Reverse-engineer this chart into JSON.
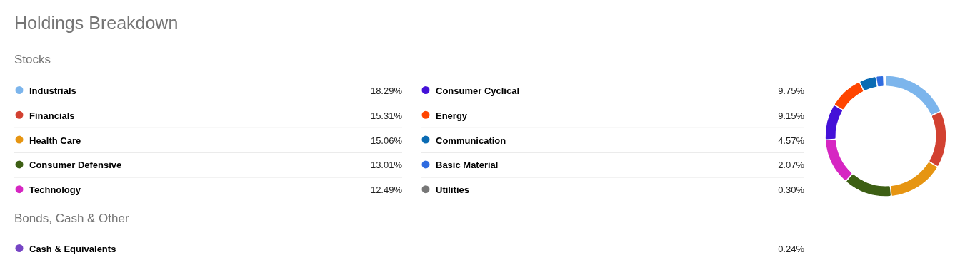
{
  "chart_data": {
    "type": "donut",
    "title": "Holdings Breakdown",
    "subtitle": "Stocks",
    "annotations": [
      "Bonds, Cash & Other"
    ],
    "categories": [
      "Industrials",
      "Financials",
      "Health Care",
      "Consumer Defensive",
      "Technology",
      "Consumer Cyclical",
      "Energy",
      "Communication",
      "Basic Material",
      "Utilities",
      "Cash & Equivalents"
    ],
    "values": [
      18.29,
      15.31,
      15.06,
      13.01,
      12.49,
      9.75,
      9.15,
      4.57,
      2.07,
      0.3,
      0.24
    ],
    "value_labels": [
      "18.29%",
      "15.31%",
      "15.06%",
      "13.01%",
      "12.49%",
      "9.75%",
      "9.15%",
      "4.57%",
      "2.07%",
      "0.30%",
      "0.24%"
    ],
    "colors": [
      "#7cb5ec",
      "#d24131",
      "#e69512",
      "#3d5f14",
      "#d626c2",
      "#4411d8",
      "#ff4500",
      "#0a6bb3",
      "#2e6be0",
      "#777777",
      "#7645c4"
    ],
    "legend": "left"
  }
}
